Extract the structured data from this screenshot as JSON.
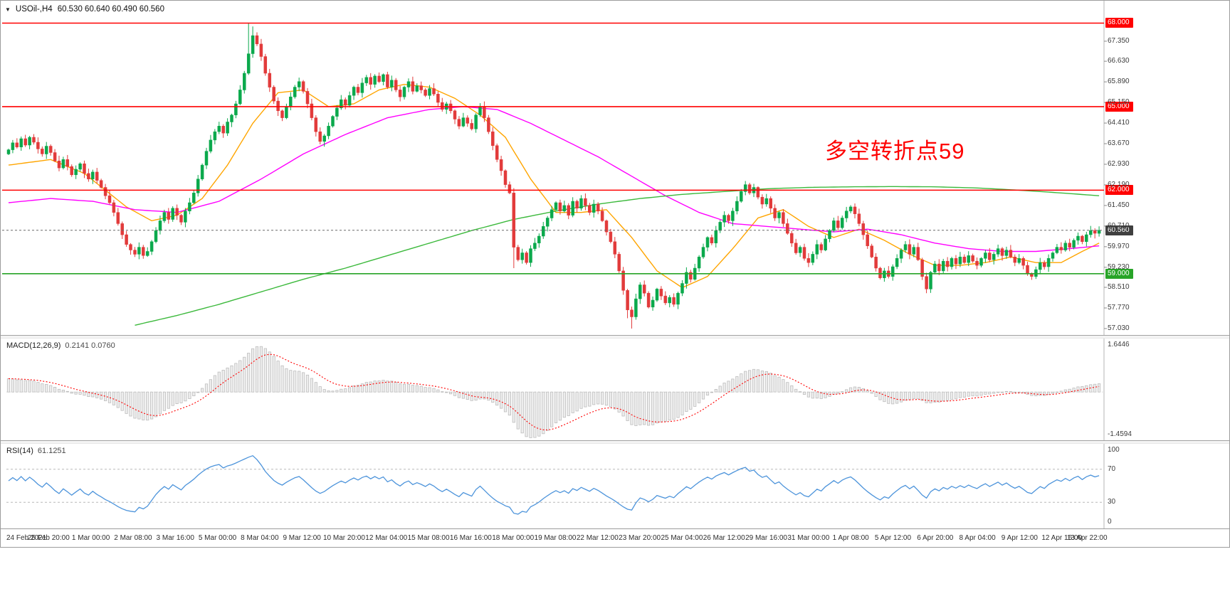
{
  "labels": {
    "header_symbol": "USOil-,H4",
    "header_ohlc": "60.530 60.640 60.490 60.560",
    "macd_name": "MACD(12,26,9)",
    "macd_values": "0.2141 0.0760",
    "rsi_name": "RSI(14)",
    "rsi_value": "61.1251"
  },
  "icons": {
    "symbol_dropdown": "▼"
  },
  "annotation": {
    "text": "多空转折点59",
    "color": "#FE0000"
  },
  "chart_data": {
    "type": "candlestick",
    "symbol": "USOil-",
    "timeframe": "H4",
    "title": "USOil-,H4",
    "current_bar": {
      "open": 60.53,
      "high": 60.64,
      "low": 60.49,
      "close": 60.56
    },
    "ylim": [
      56.85,
      68.6
    ],
    "grid": false,
    "y_ticks": [
      "67.350",
      "66.630",
      "65.890",
      "65.150",
      "64.410",
      "63.670",
      "62.930",
      "62.190",
      "61.450",
      "60.710",
      "59.970",
      "59.230",
      "58.510",
      "57.770",
      "57.030"
    ],
    "time_labels": [
      "24 Feb 2021",
      "25 Feb 20:00",
      "1 Mar 00:00",
      "2 Mar 08:00",
      "3 Mar 16:00",
      "5 Mar 00:00",
      "8 Mar 04:00",
      "9 Mar 12:00",
      "10 Mar 20:00",
      "12 Mar 04:00",
      "15 Mar 08:00",
      "16 Mar 16:00",
      "18 Mar 00:00",
      "19 Mar 08:00",
      "22 Mar 12:00",
      "23 Mar 20:00",
      "25 Mar 04:00",
      "26 Mar 12:00",
      "29 Mar 16:00",
      "31 Mar 00:00",
      "1 Apr 08:00",
      "5 Apr 12:00",
      "6 Apr 20:00",
      "8 Apr 04:00",
      "9 Apr 12:00",
      "12 Apr 16:00",
      "13 Apr 22:00"
    ],
    "first_open": 63.3,
    "closes": [
      63.45,
      63.7,
      63.55,
      63.85,
      63.62,
      63.9,
      63.72,
      63.48,
      63.3,
      63.58,
      63.35,
      63.05,
      62.8,
      63.1,
      62.85,
      62.55,
      62.75,
      62.95,
      62.6,
      62.4,
      62.65,
      62.35,
      62.1,
      61.8,
      61.55,
      61.2,
      60.8,
      60.4,
      60.05,
      59.85,
      59.7,
      59.95,
      59.65,
      59.8,
      60.15,
      60.55,
      60.9,
      61.2,
      60.95,
      61.35,
      61.1,
      60.85,
      61.25,
      61.55,
      61.9,
      62.4,
      62.9,
      63.4,
      63.8,
      64.1,
      64.3,
      64.05,
      64.45,
      64.7,
      65.1,
      65.6,
      66.2,
      66.9,
      67.55,
      67.25,
      66.8,
      66.2,
      65.7,
      65.2,
      64.85,
      64.6,
      65.0,
      65.35,
      65.7,
      65.9,
      65.55,
      65.1,
      64.6,
      64.1,
      63.75,
      63.95,
      64.3,
      64.65,
      64.95,
      65.25,
      65.05,
      65.4,
      65.7,
      65.5,
      65.85,
      66.05,
      65.8,
      66.1,
      65.9,
      66.15,
      65.7,
      65.95,
      65.6,
      65.35,
      65.7,
      65.9,
      65.55,
      65.75,
      65.6,
      65.4,
      65.65,
      65.45,
      65.15,
      64.9,
      65.1,
      64.85,
      64.55,
      64.3,
      64.6,
      64.4,
      64.2,
      64.7,
      65.0,
      64.6,
      64.1,
      63.6,
      63.1,
      62.7,
      62.2,
      61.9,
      59.95,
      59.5,
      59.75,
      59.4,
      59.9,
      60.1,
      60.35,
      60.7,
      61.0,
      61.3,
      61.55,
      61.25,
      61.45,
      61.1,
      61.6,
      61.35,
      61.7,
      61.45,
      61.2,
      61.5,
      61.25,
      60.9,
      60.5,
      60.15,
      59.7,
      59.1,
      58.4,
      57.7,
      57.45,
      58.1,
      58.6,
      58.3,
      57.8,
      58.05,
      58.45,
      58.2,
      57.95,
      58.15,
      57.9,
      58.3,
      58.65,
      59.05,
      58.8,
      59.2,
      59.6,
      59.95,
      60.3,
      60.1,
      60.55,
      60.85,
      61.1,
      60.9,
      61.25,
      61.6,
      61.95,
      62.2,
      61.9,
      62.1,
      61.75,
      61.5,
      61.7,
      61.35,
      61.0,
      61.2,
      60.8,
      60.45,
      60.1,
      59.75,
      59.95,
      59.55,
      59.4,
      59.7,
      60.05,
      59.85,
      60.25,
      60.55,
      60.9,
      60.65,
      61.0,
      61.25,
      61.4,
      61.15,
      60.8,
      60.4,
      60.0,
      59.6,
      59.2,
      58.85,
      59.1,
      58.9,
      59.25,
      59.55,
      59.85,
      60.05,
      59.7,
      59.95,
      59.5,
      58.9,
      58.45,
      59.05,
      59.35,
      59.1,
      59.45,
      59.25,
      59.55,
      59.35,
      59.6,
      59.4,
      59.65,
      59.45,
      59.3,
      59.55,
      59.75,
      59.5,
      59.7,
      59.9,
      59.65,
      59.85,
      59.6,
      59.4,
      59.55,
      59.3,
      59.0,
      58.9,
      59.15,
      59.4,
      59.25,
      59.55,
      59.75,
      59.95,
      59.85,
      60.1,
      59.95,
      60.2,
      60.35,
      60.15,
      60.4,
      60.55,
      60.45,
      60.56
    ],
    "wick_overrides": {
      "57": {
        "high": 68.0
      },
      "58": {
        "high": 67.88
      },
      "120": {
        "low": 59.2
      },
      "147": {
        "low": 57.4
      },
      "148": {
        "low": 57.03
      },
      "175": {
        "high": 62.33
      },
      "218": {
        "low": 58.3
      },
      "243": {
        "low": 58.78
      }
    },
    "levels": [
      {
        "price": 68.0,
        "label": "68.000",
        "color": "#FF0000"
      },
      {
        "price": 65.0,
        "label": "65.000",
        "color": "#FF0000"
      },
      {
        "price": 62.0,
        "label": "62.000",
        "color": "#FF0000"
      },
      {
        "price": 59.0,
        "label": "59.000",
        "color": "#28A428"
      }
    ],
    "current_price_line": {
      "price": 60.56,
      "label": "60.560"
    },
    "moving_averages": [
      {
        "name": "ma-fast-orange",
        "color": "#FFA500",
        "anchors": [
          [
            0,
            62.9
          ],
          [
            10,
            63.1
          ],
          [
            18,
            62.6
          ],
          [
            28,
            61.4
          ],
          [
            34,
            60.9
          ],
          [
            40,
            61.1
          ],
          [
            46,
            61.7
          ],
          [
            52,
            62.9
          ],
          [
            58,
            64.4
          ],
          [
            64,
            65.5
          ],
          [
            70,
            65.6
          ],
          [
            76,
            65.0
          ],
          [
            82,
            65.1
          ],
          [
            88,
            65.6
          ],
          [
            94,
            65.8
          ],
          [
            100,
            65.7
          ],
          [
            106,
            65.3
          ],
          [
            112,
            64.7
          ],
          [
            118,
            63.9
          ],
          [
            124,
            62.4
          ],
          [
            130,
            61.2
          ],
          [
            136,
            61.2
          ],
          [
            142,
            61.3
          ],
          [
            148,
            60.3
          ],
          [
            154,
            59.1
          ],
          [
            160,
            58.5
          ],
          [
            166,
            58.9
          ],
          [
            172,
            59.9
          ],
          [
            178,
            61.0
          ],
          [
            184,
            61.3
          ],
          [
            190,
            60.7
          ],
          [
            196,
            60.3
          ],
          [
            202,
            60.6
          ],
          [
            208,
            60.2
          ],
          [
            214,
            59.7
          ],
          [
            220,
            59.3
          ],
          [
            226,
            59.3
          ],
          [
            232,
            59.4
          ],
          [
            238,
            59.6
          ],
          [
            244,
            59.4
          ],
          [
            250,
            59.4
          ],
          [
            255,
            59.8
          ],
          [
            259,
            60.1
          ]
        ]
      },
      {
        "name": "ma-medium-magenta",
        "color": "#FF00FF",
        "anchors": [
          [
            0,
            61.55
          ],
          [
            10,
            61.7
          ],
          [
            20,
            61.6
          ],
          [
            30,
            61.3
          ],
          [
            40,
            61.2
          ],
          [
            50,
            61.6
          ],
          [
            60,
            62.4
          ],
          [
            70,
            63.3
          ],
          [
            80,
            64.0
          ],
          [
            90,
            64.6
          ],
          [
            100,
            64.9
          ],
          [
            108,
            65.0
          ],
          [
            116,
            64.9
          ],
          [
            124,
            64.4
          ],
          [
            132,
            63.8
          ],
          [
            140,
            63.2
          ],
          [
            148,
            62.5
          ],
          [
            156,
            61.8
          ],
          [
            164,
            61.2
          ],
          [
            172,
            60.8
          ],
          [
            180,
            60.7
          ],
          [
            188,
            60.6
          ],
          [
            196,
            60.5
          ],
          [
            204,
            60.6
          ],
          [
            212,
            60.4
          ],
          [
            220,
            60.1
          ],
          [
            228,
            59.9
          ],
          [
            236,
            59.8
          ],
          [
            244,
            59.8
          ],
          [
            252,
            59.9
          ],
          [
            259,
            60.0
          ]
        ]
      },
      {
        "name": "ma-slow-green",
        "color": "#3CB93C",
        "anchors": [
          [
            30,
            57.15
          ],
          [
            40,
            57.5
          ],
          [
            50,
            57.9
          ],
          [
            60,
            58.35
          ],
          [
            70,
            58.8
          ],
          [
            80,
            59.2
          ],
          [
            90,
            59.65
          ],
          [
            100,
            60.1
          ],
          [
            110,
            60.55
          ],
          [
            120,
            60.95
          ],
          [
            130,
            61.25
          ],
          [
            140,
            61.5
          ],
          [
            150,
            61.7
          ],
          [
            160,
            61.85
          ],
          [
            170,
            61.95
          ],
          [
            180,
            62.05
          ],
          [
            190,
            62.1
          ],
          [
            200,
            62.12
          ],
          [
            210,
            62.13
          ],
          [
            220,
            62.12
          ],
          [
            230,
            62.08
          ],
          [
            240,
            62.0
          ],
          [
            250,
            61.9
          ],
          [
            259,
            61.8
          ]
        ]
      }
    ],
    "indicators": {
      "macd": {
        "name": "MACD(12,26,9)",
        "params": [
          12,
          26,
          9
        ],
        "values": [
          0.2141,
          0.076
        ],
        "axis_labels": [
          "1.6446",
          "-1.4594"
        ],
        "axis_max": 1.6446,
        "axis_min": -1.4594
      },
      "rsi": {
        "name": "RSI(14)",
        "period": 14,
        "value": 61.1251,
        "levels": [
          70,
          30
        ],
        "axis_labels": [
          "100",
          "70",
          "30",
          "0"
        ],
        "range": [
          0,
          100
        ]
      }
    },
    "colors": {
      "bull": "#0BA94C",
      "bear": "#E23B3B",
      "level_red": "#FF0000",
      "level_green": "#28A428",
      "current_badge": "#3F3F3F",
      "current_line": "#6a6a6a",
      "macd_hist_fill": "#ededed",
      "macd_hist_stroke": "#bdbdbd",
      "macd_signal": "#FF0000",
      "rsi_line": "#4D94DB",
      "axis_text": "#3c3c3c"
    }
  }
}
